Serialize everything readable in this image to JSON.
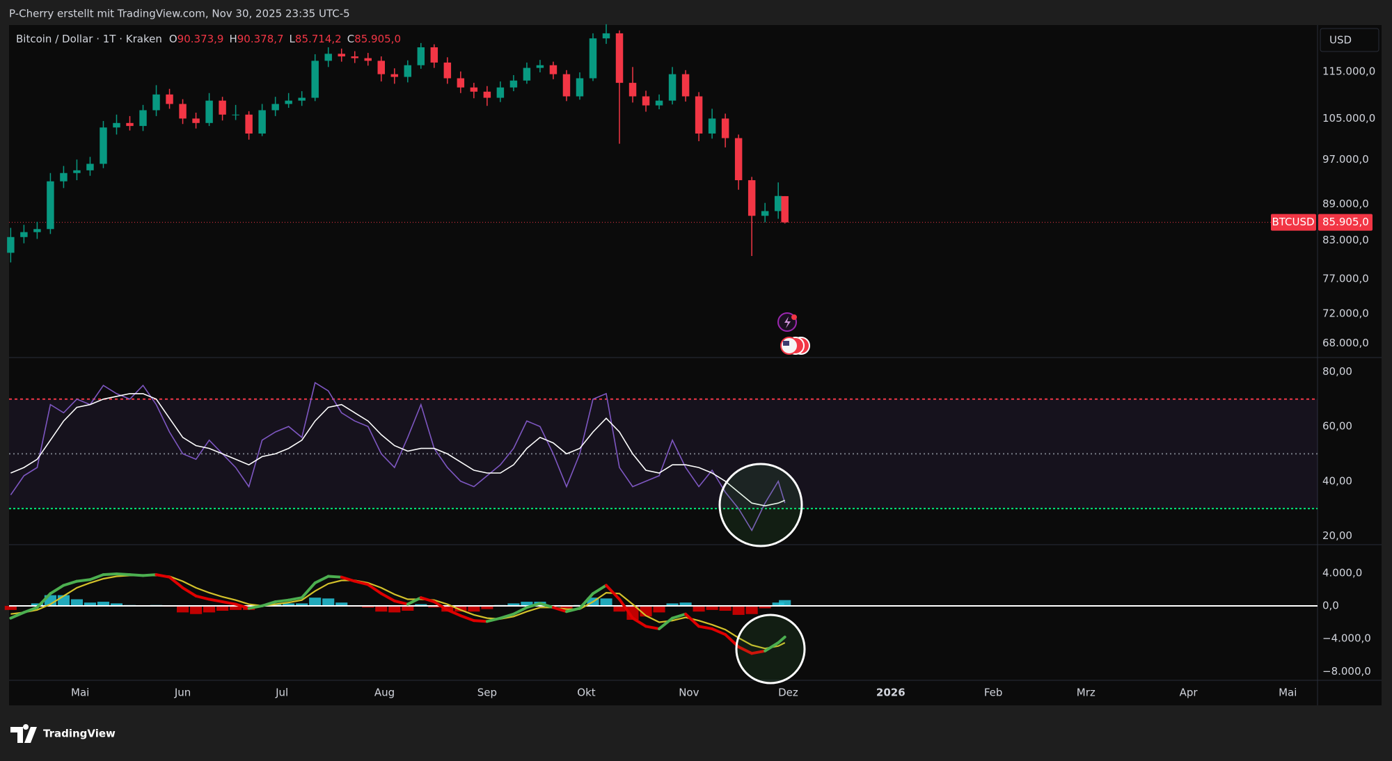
{
  "header": {
    "attribution": "P-Cherry erstellt mit TradingView.com, Nov 30, 2025 23:35 UTC-5",
    "currency": "USD",
    "logo": "TradingView"
  },
  "chart_data": [
    {
      "type": "candlestick",
      "title": "Bitcoin / Dollar · 1T · Kraken",
      "ohlc_labels": [
        {
          "key": "O",
          "label": "90.373,9"
        },
        {
          "key": "H",
          "label": "90.378,7"
        },
        {
          "key": "L",
          "label": "85.714,2"
        },
        {
          "key": "C",
          "label": "85.905,0"
        }
      ],
      "symbol": "BTCUSD",
      "last_price": {
        "value": 85905,
        "label": "85.905,0"
      },
      "color_up": "#089981",
      "color_down": "#f23645",
      "log": true,
      "xlim": [
        -21.5,
        374
      ],
      "xticks": [
        {
          "value": 0,
          "label": "Mai"
        },
        {
          "value": 31,
          "label": "Jun"
        },
        {
          "value": 61,
          "label": "Jul"
        },
        {
          "value": 92,
          "label": "Aug"
        },
        {
          "value": 123,
          "label": "Sep"
        },
        {
          "value": 153,
          "label": "Okt"
        },
        {
          "value": 184,
          "label": "Nov"
        },
        {
          "value": 214,
          "label": "Dez"
        },
        {
          "value": 245,
          "label": "2026",
          "bold": true
        },
        {
          "value": 276,
          "label": "Feb"
        },
        {
          "value": 304,
          "label": "Mrz"
        },
        {
          "value": 335,
          "label": "Apr"
        },
        {
          "value": 365,
          "label": "Mai"
        }
      ],
      "ylim": [
        66150,
        125800
      ],
      "yticks": [
        {
          "value": 115000,
          "label": "115.000,0"
        },
        {
          "value": 105000,
          "label": "105.000,0"
        },
        {
          "value": 97000,
          "label": "97.000,0"
        },
        {
          "value": 89000,
          "label": "89.000,0"
        },
        {
          "value": 83000,
          "label": "83.000,0"
        },
        {
          "value": 77000,
          "label": "77.000,0"
        },
        {
          "value": 72000,
          "label": "72.000,0"
        },
        {
          "value": 68000,
          "label": "68.000,0"
        }
      ],
      "x": [
        -21,
        -17,
        -13,
        -9,
        -5,
        -1,
        3,
        7,
        11,
        15,
        19,
        23,
        27,
        31,
        35,
        39,
        43,
        47,
        51,
        55,
        59,
        63,
        67,
        71,
        75,
        79,
        83,
        87,
        91,
        95,
        99,
        103,
        107,
        111,
        115,
        119,
        123,
        127,
        131,
        135,
        139,
        143,
        147,
        151,
        155,
        159,
        163,
        167,
        171,
        175,
        179,
        183,
        187,
        191,
        195,
        199,
        203,
        207,
        211,
        213
      ],
      "open": [
        81000,
        83500,
        84300,
        84800,
        93000,
        94500,
        95000,
        96200,
        103200,
        104100,
        103500,
        106700,
        110000,
        108000,
        105000,
        104100,
        108700,
        105800,
        105800,
        102000,
        106700,
        108000,
        108700,
        109300,
        117400,
        119000,
        118400,
        118000,
        117400,
        114400,
        113800,
        116400,
        120500,
        117000,
        113500,
        111500,
        110600,
        109300,
        111500,
        113000,
        115800,
        116400,
        114400,
        109600,
        113500,
        122600,
        123800,
        112500,
        109600,
        107700,
        108700,
        114400,
        109600,
        102000,
        105000,
        101100,
        93200,
        87000,
        87800,
        90373.9
      ],
      "high": [
        85000,
        85500,
        86000,
        94500,
        95800,
        97000,
        97500,
        104500,
        105800,
        105500,
        107800,
        112000,
        111200,
        109000,
        106200,
        110300,
        109500,
        107800,
        106500,
        108000,
        109500,
        110300,
        110700,
        118900,
        120500,
        120200,
        119600,
        119200,
        118400,
        115700,
        117500,
        121500,
        121200,
        118200,
        115000,
        112500,
        111800,
        112800,
        114200,
        117000,
        117600,
        117200,
        115300,
        114800,
        123800,
        126000,
        124500,
        116000,
        110800,
        110000,
        116000,
        115300,
        110500,
        107000,
        106000,
        101800,
        93800,
        89200,
        92800,
        90378.7
      ],
      "low": [
        79500,
        82500,
        83200,
        84000,
        91800,
        93200,
        94000,
        95400,
        101800,
        102600,
        102500,
        105500,
        107000,
        103900,
        103000,
        103500,
        104600,
        104700,
        100800,
        101500,
        105500,
        107200,
        107600,
        108600,
        116000,
        117200,
        116900,
        116300,
        112800,
        112300,
        112600,
        115600,
        115800,
        112300,
        110300,
        109200,
        107600,
        108400,
        110700,
        112300,
        114800,
        113300,
        108600,
        108900,
        112900,
        121300,
        100000,
        108300,
        106400,
        106900,
        107900,
        108500,
        100500,
        101000,
        99300,
        91500,
        80500,
        85900,
        86500,
        85714.2
      ],
      "close": [
        83500,
        84300,
        84800,
        93000,
        94500,
        95000,
        96200,
        103200,
        104100,
        103500,
        106700,
        110000,
        108000,
        105000,
        104100,
        108700,
        105800,
        105800,
        102000,
        106700,
        108000,
        108700,
        109300,
        117400,
        119000,
        118400,
        118000,
        117400,
        114400,
        113800,
        116400,
        120500,
        117000,
        113500,
        111500,
        110600,
        109300,
        111500,
        113000,
        115800,
        116400,
        114400,
        109600,
        113500,
        122600,
        123800,
        112500,
        109600,
        107700,
        108700,
        114400,
        109600,
        102000,
        105000,
        101100,
        93200,
        87000,
        87800,
        90400,
        85905
      ]
    },
    {
      "type": "line",
      "ylim": [
        16.8,
        85.2
      ],
      "yticks": [
        {
          "value": 80,
          "label": "80,00"
        },
        {
          "value": 60,
          "label": "60,00"
        },
        {
          "value": 40,
          "label": "40,00"
        },
        {
          "value": 20,
          "label": "20,00"
        }
      ],
      "levels": [
        {
          "value": 70,
          "color": "#f23645",
          "dash": "4 4"
        },
        {
          "value": 50,
          "color": "#787b86",
          "dash": "2 4"
        },
        {
          "value": 30,
          "color": "#00e676",
          "dash": "3 3"
        }
      ],
      "band_color": "#7e57c2",
      "series": [
        {
          "color": "#7e57c2",
          "values": [
            35,
            42,
            45,
            68,
            65,
            70,
            68,
            75,
            72,
            70,
            75,
            68,
            58,
            50,
            48,
            55,
            50,
            45,
            38,
            55,
            58,
            60,
            56,
            76,
            73,
            65,
            62,
            60,
            50,
            45,
            56,
            68,
            52,
            45,
            40,
            38,
            42,
            46,
            52,
            62,
            60,
            50,
            38,
            50,
            70,
            72,
            45,
            38,
            40,
            42,
            55,
            45,
            38,
            44,
            36,
            30,
            22,
            32,
            40,
            32
          ]
        },
        {
          "color": "#ffffff",
          "values": [
            43,
            45,
            48,
            55,
            62,
            67,
            68,
            70,
            71,
            72,
            72,
            70,
            63,
            56,
            53,
            52,
            50,
            48,
            46,
            49,
            50,
            52,
            55,
            62,
            67,
            68,
            65,
            62,
            57,
            53,
            51,
            52,
            52,
            50,
            47,
            44,
            43,
            43,
            46,
            52,
            56,
            54,
            50,
            52,
            58,
            63,
            58,
            50,
            44,
            43,
            46,
            46,
            45,
            43,
            40,
            36,
            32,
            31,
            32,
            33
          ]
        }
      ]
    },
    {
      "type": "macd",
      "ylim": [
        -9080,
        7460
      ],
      "yticks": [
        {
          "value": 4000,
          "label": "4.000,0"
        },
        {
          "value": 0,
          "label": "0,0"
        },
        {
          "value": -4000,
          "label": "−4.000,0"
        },
        {
          "value": -8000,
          "label": "−8.000,0"
        }
      ],
      "zero_color": "#ffffff",
      "histogram": {
        "color_up": "#26c6da",
        "color_down": "#e00000",
        "values": [
          -500,
          0,
          300,
          1300,
          1300,
          800,
          400,
          500,
          300,
          100,
          0,
          100,
          -100,
          -800,
          -1000,
          -800,
          -600,
          -500,
          -500,
          0,
          300,
          300,
          300,
          1000,
          900,
          400,
          -100,
          -200,
          -700,
          -800,
          -600,
          200,
          -200,
          -700,
          -700,
          -700,
          -400,
          100,
          300,
          500,
          500,
          0,
          -300,
          100,
          1000,
          900,
          -700,
          -1700,
          -1300,
          -800,
          300,
          400,
          -700,
          -500,
          -600,
          -1100,
          -1000,
          -300,
          400,
          700
        ]
      },
      "series": [
        {
          "color": "#d4c22b",
          "values": [
            -1000,
            -800,
            -500,
            200,
            1200,
            2200,
            2800,
            3300,
            3600,
            3700,
            3700,
            3700,
            3600,
            3000,
            2200,
            1600,
            1100,
            700,
            200,
            0,
            200,
            400,
            700,
            1800,
            2700,
            3100,
            3100,
            2800,
            2200,
            1400,
            800,
            800,
            700,
            200,
            -500,
            -1100,
            -1500,
            -1600,
            -1300,
            -700,
            -200,
            -200,
            -400,
            -400,
            500,
            1600,
            1500,
            200,
            -1200,
            -2000,
            -1800,
            -1400,
            -1800,
            -2300,
            -2900,
            -3900,
            -4800,
            -5200,
            -4900,
            -4500
          ]
        },
        {
          "color_up": "#4caf50",
          "color_down": "#e00000",
          "values": [
            -1500,
            -800,
            -200,
            1500,
            2500,
            3000,
            3200,
            3800,
            3900,
            3800,
            3700,
            3800,
            3500,
            2200,
            1200,
            800,
            500,
            200,
            -300,
            0,
            500,
            700,
            1000,
            2800,
            3600,
            3500,
            3000,
            2600,
            1500,
            600,
            200,
            1000,
            500,
            -500,
            -1200,
            -1800,
            -1900,
            -1500,
            -1000,
            -200,
            300,
            -200,
            -700,
            -300,
            1500,
            2500,
            800,
            -1500,
            -2500,
            -2800,
            -1500,
            -1000,
            -2500,
            -2800,
            -3500,
            -5000,
            -5800,
            -5500,
            -4500,
            -3800
          ]
        }
      ]
    }
  ]
}
